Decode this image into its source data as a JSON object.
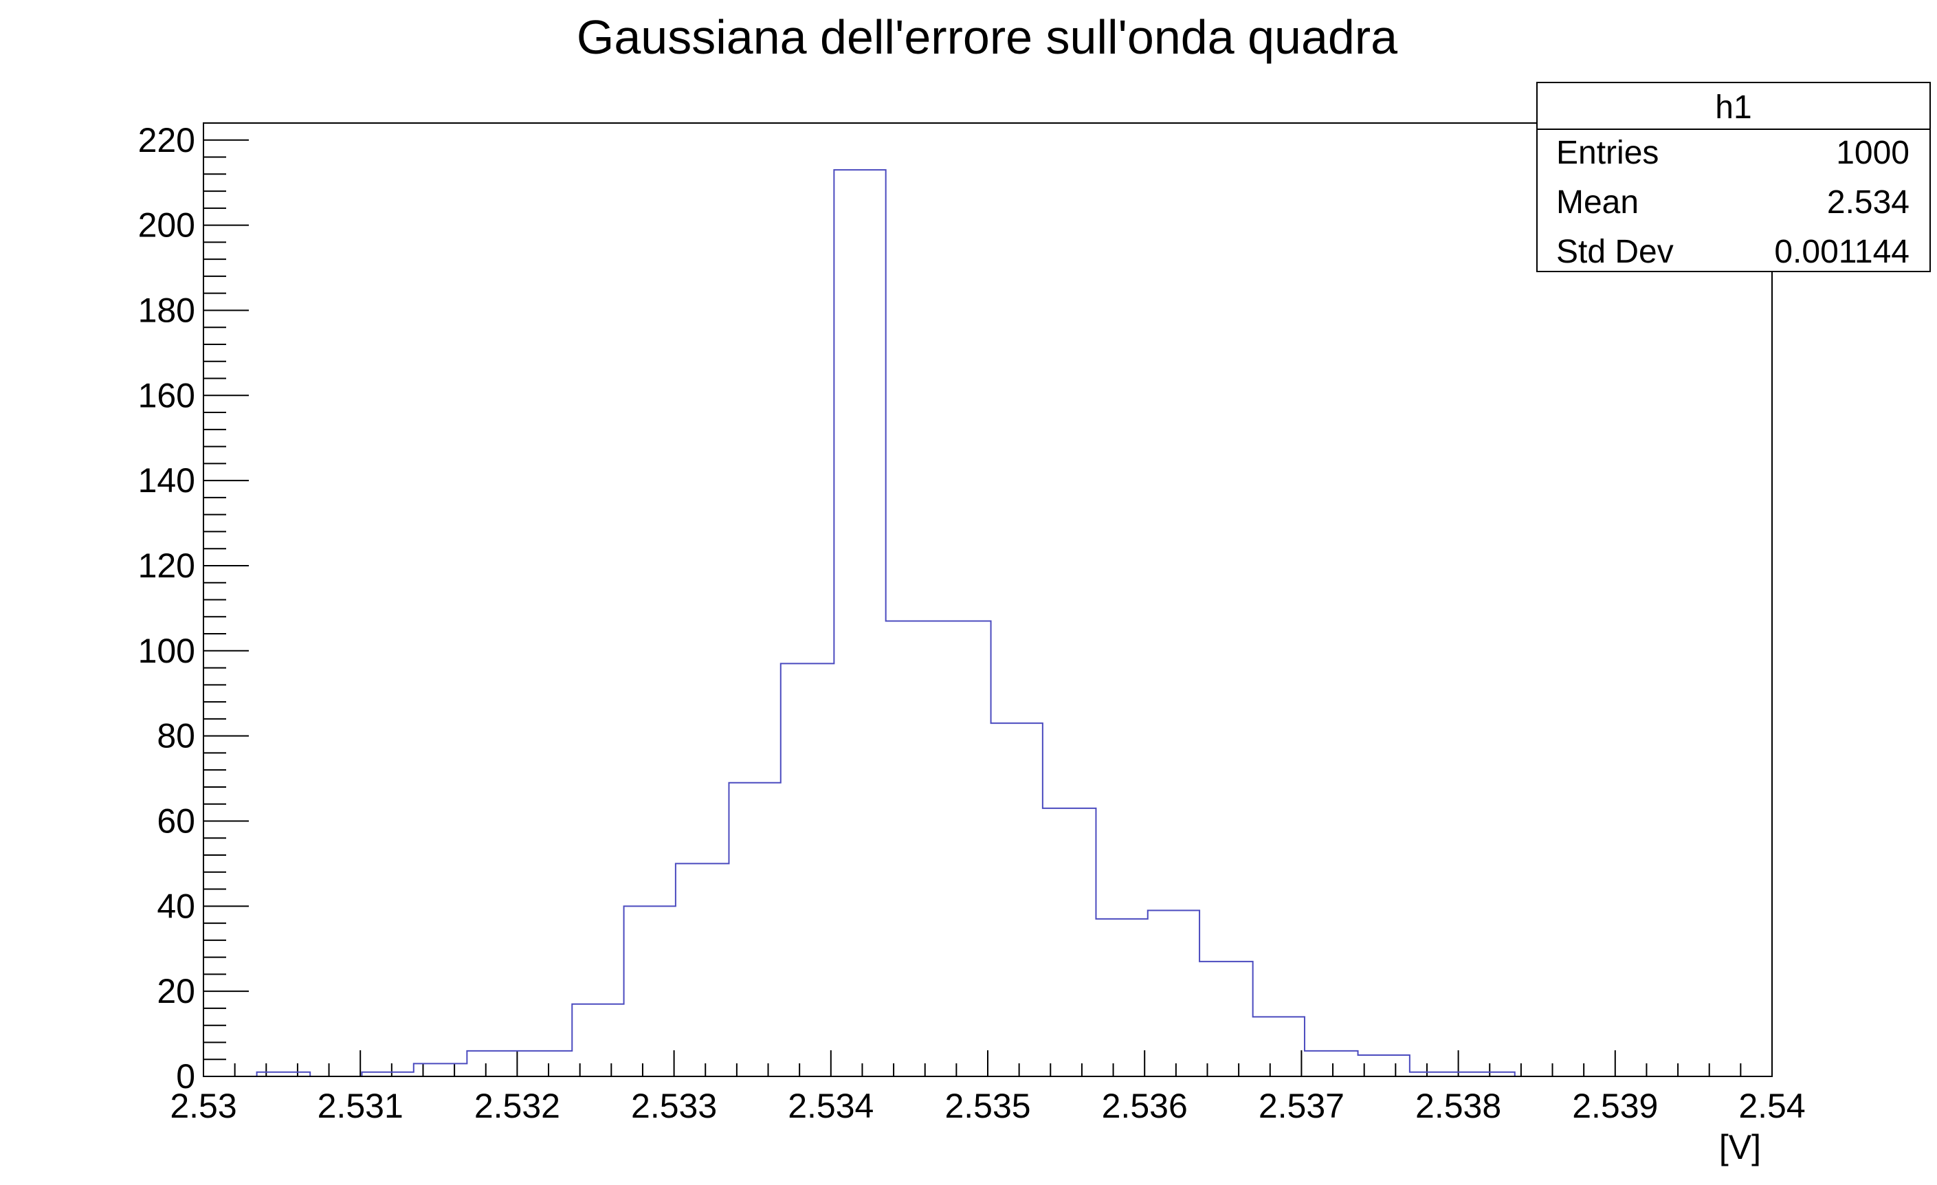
{
  "chart_data": {
    "type": "bar",
    "title": "Gaussiana dell'errore sull'onda quadra",
    "xlabel": "[V]",
    "ylabel": "",
    "xlim": [
      2.53,
      2.54
    ],
    "ylim": [
      0,
      224
    ],
    "grid": false,
    "x_ticks": [
      "2.53",
      "2.531",
      "2.532",
      "2.533",
      "2.534",
      "2.535",
      "2.536",
      "2.537",
      "2.538",
      "2.539",
      "2.54"
    ],
    "y_ticks": [
      "0",
      "20",
      "40",
      "60",
      "80",
      "100",
      "120",
      "140",
      "160",
      "180",
      "200",
      "220"
    ],
    "bin_edges": [
      2.53034,
      2.53068,
      2.53101,
      2.53134,
      2.53168,
      2.53201,
      2.53235,
      2.53268,
      2.53301,
      2.53335,
      2.53368,
      2.53402,
      2.53435,
      2.53468,
      2.53502,
      2.53535,
      2.53569,
      2.53602,
      2.53635,
      2.53669,
      2.53702,
      2.53736,
      2.53769,
      2.53802,
      2.53836
    ],
    "values": [
      1,
      0,
      1,
      3,
      6,
      6,
      17,
      40,
      50,
      69,
      97,
      213,
      107,
      107,
      83,
      63,
      37,
      39,
      27,
      14,
      6,
      5,
      1,
      1
    ],
    "line_color": "#4b4bbf",
    "stats_box": {
      "title": "h1",
      "rows": [
        {
          "label": "Entries",
          "value": "1000"
        },
        {
          "label": "Mean",
          "value": "2.534"
        },
        {
          "label": "Std Dev",
          "value": "0.001144"
        }
      ]
    }
  }
}
